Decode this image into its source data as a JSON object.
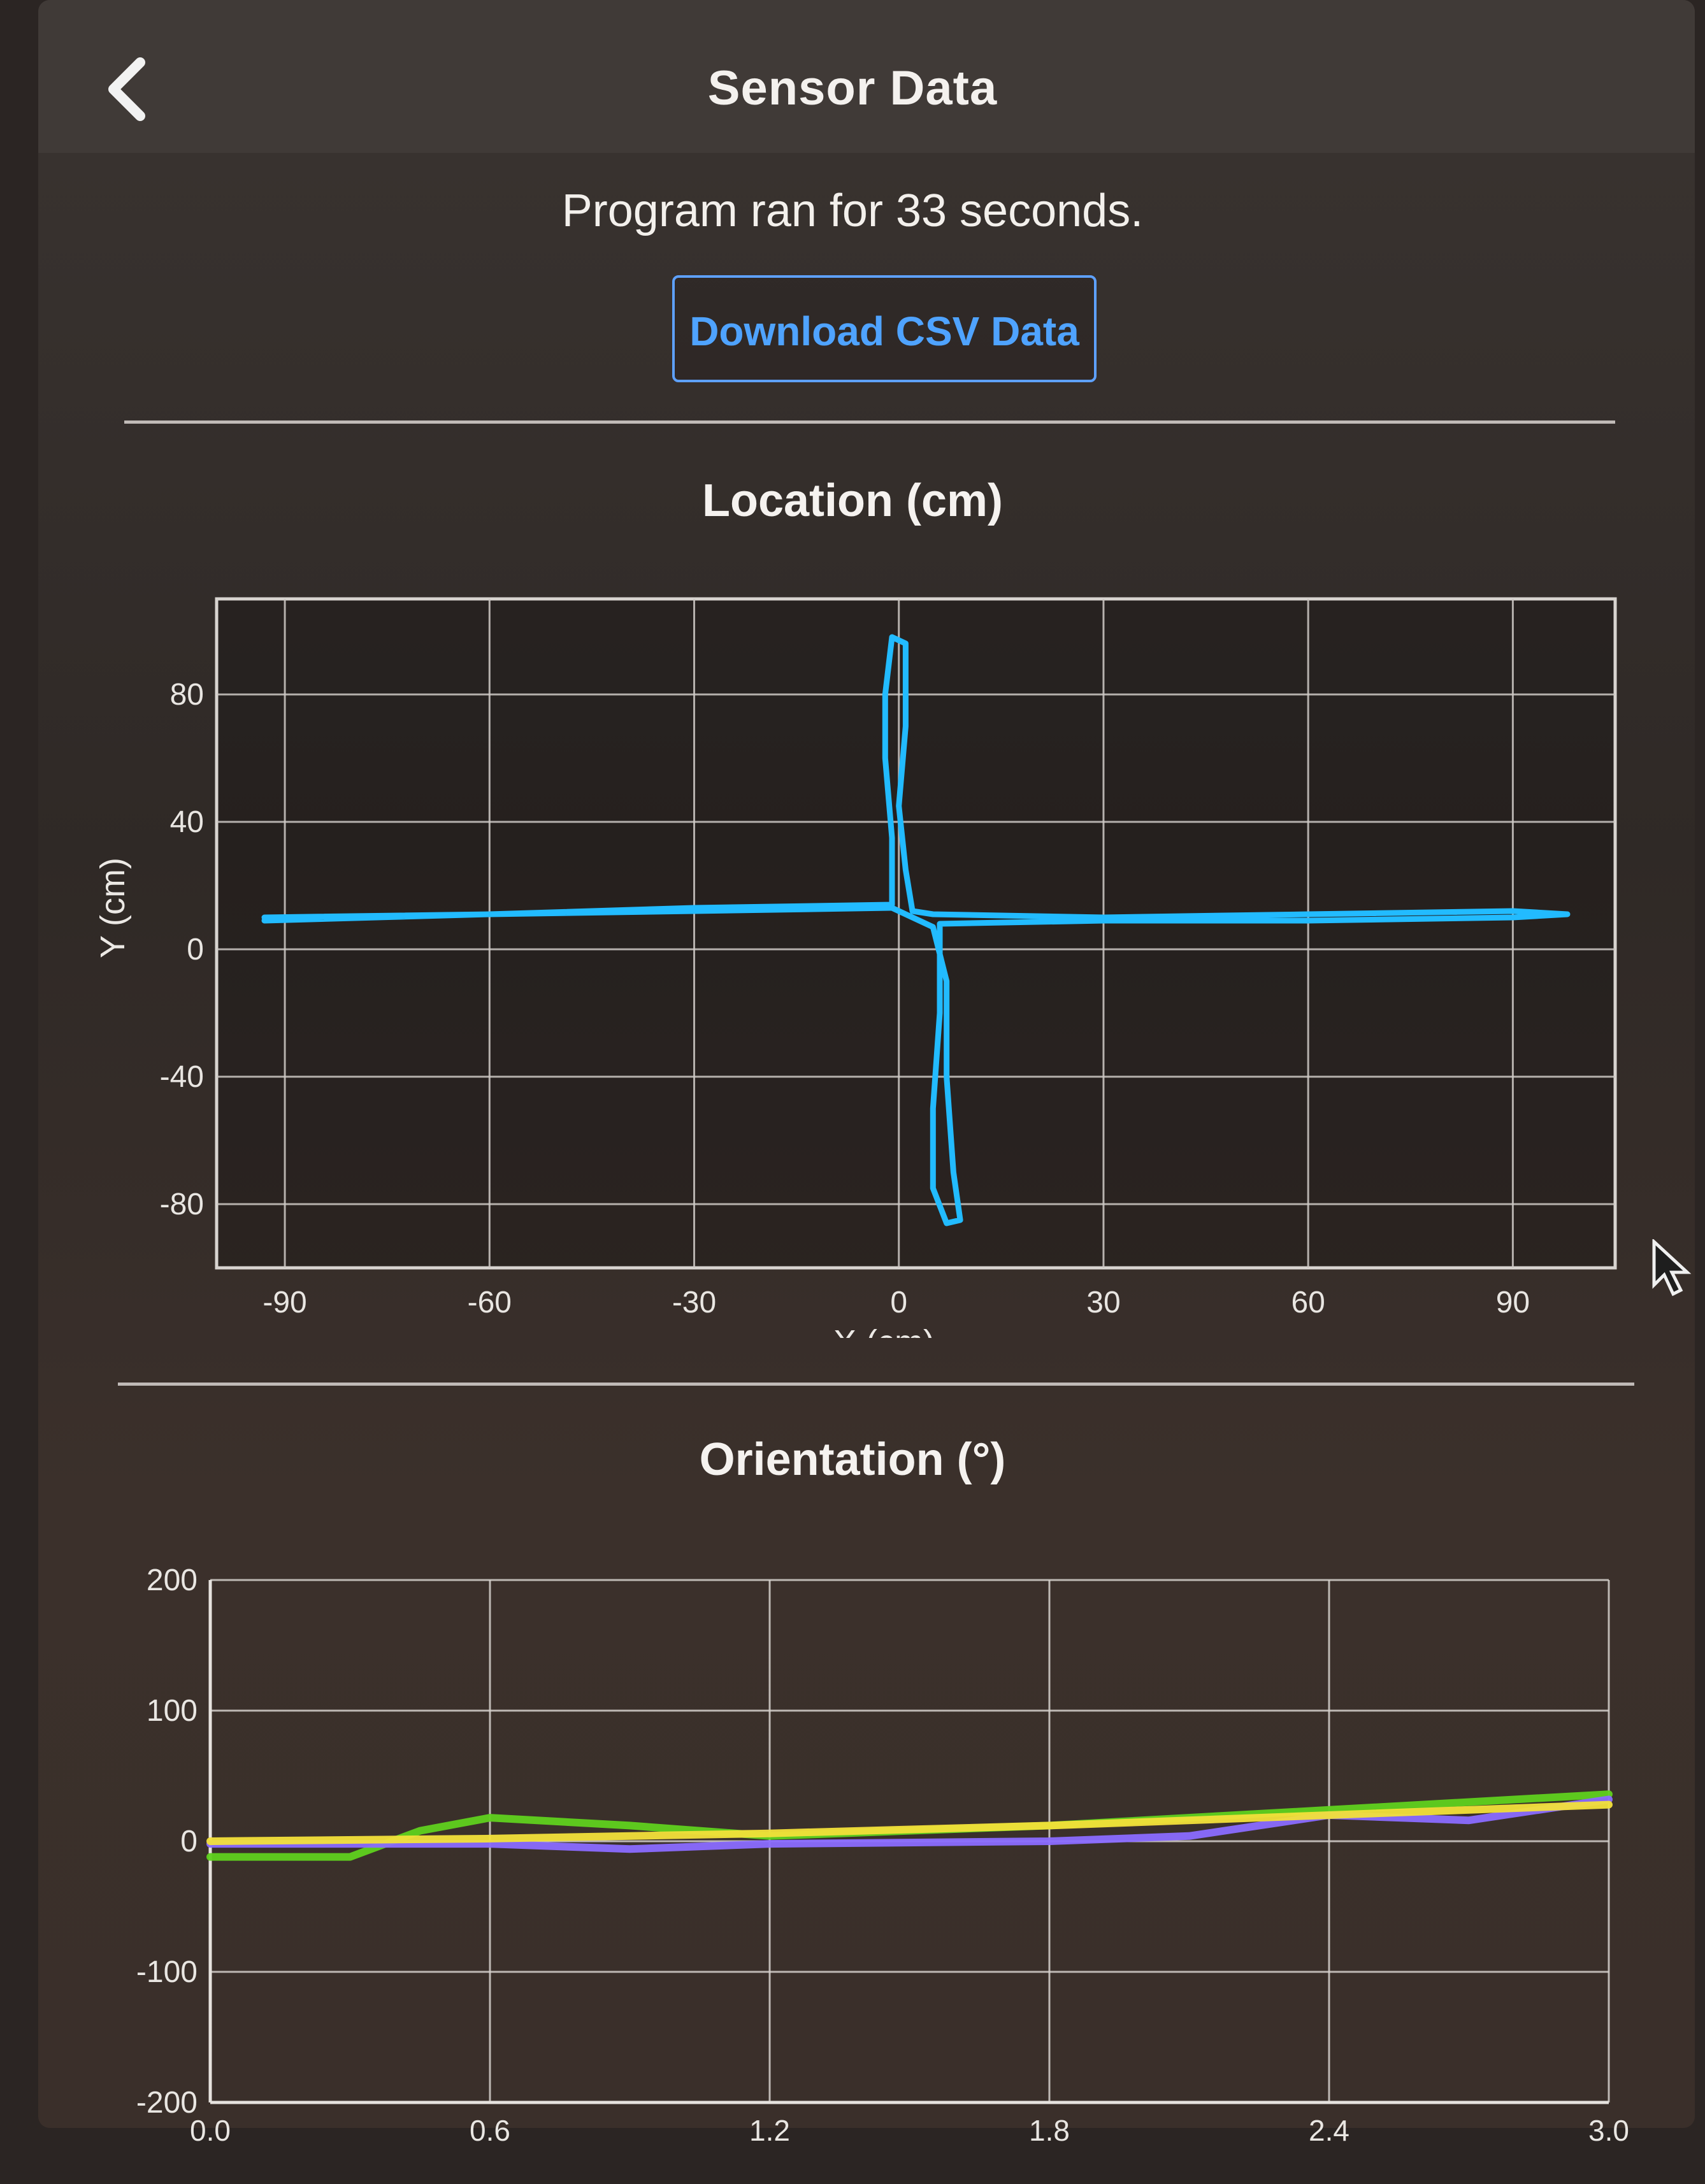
{
  "header": {
    "title": "Sensor Data",
    "back_icon": "chevron-left-icon"
  },
  "summary": {
    "runtime_text": "Program ran for 33 seconds.",
    "download_label": "Download CSV Data"
  },
  "location_chart": {
    "title": "Location (cm)",
    "chart_data": {
      "type": "line",
      "title": "Location (cm)",
      "xlabel": "X (cm)",
      "ylabel": "Y (cm)",
      "xlim": [
        -100,
        105
      ],
      "ylim": [
        -100,
        110
      ],
      "x_ticks": [
        -90,
        -60,
        -30,
        0,
        30,
        60,
        90
      ],
      "y_ticks": [
        80,
        40,
        0,
        -40,
        -80
      ],
      "grid": true,
      "series": [
        {
          "color": "#22bbff",
          "points": [
            [
              -93,
              9
            ],
            [
              -60,
              11
            ],
            [
              -30,
              13
            ],
            [
              -1,
              14
            ],
            [
              -1,
              35
            ],
            [
              -2,
              60
            ],
            [
              -2,
              80
            ],
            [
              -1,
              98
            ],
            [
              1,
              96
            ],
            [
              1,
              70
            ],
            [
              0,
              45
            ],
            [
              1,
              25
            ],
            [
              2,
              12
            ],
            [
              5,
              11
            ],
            [
              30,
              10
            ],
            [
              60,
              11
            ],
            [
              90,
              12
            ],
            [
              98,
              11
            ],
            [
              90,
              10
            ],
            [
              60,
              9
            ],
            [
              30,
              9
            ],
            [
              6,
              8
            ],
            [
              6,
              -20
            ],
            [
              5,
              -50
            ],
            [
              5,
              -75
            ],
            [
              7,
              -86
            ],
            [
              9,
              -85
            ],
            [
              8,
              -70
            ],
            [
              7,
              -40
            ],
            [
              7,
              -10
            ],
            [
              5,
              7
            ],
            [
              -1,
              13
            ],
            [
              -30,
              12
            ],
            [
              -60,
              11
            ],
            [
              -93,
              10
            ]
          ]
        }
      ]
    }
  },
  "orientation_chart": {
    "title": "Orientation (°)",
    "chart_data": {
      "type": "line",
      "title": "Orientation (°)",
      "xlim": [
        0,
        3
      ],
      "ylim": [
        -200,
        200
      ],
      "x_ticks": [
        "0.0",
        "0.6",
        "1.2",
        "1.8",
        "2.4",
        "3.0"
      ],
      "y_ticks": [
        200,
        100,
        0,
        -100,
        -200
      ],
      "grid": true,
      "series": [
        {
          "color": "#5fd11e",
          "points": [
            [
              0,
              -12
            ],
            [
              0.3,
              -12
            ],
            [
              0.45,
              8
            ],
            [
              0.6,
              18
            ],
            [
              0.9,
              12
            ],
            [
              1.2,
              4
            ],
            [
              1.8,
              12
            ],
            [
              2.4,
              24
            ],
            [
              3.0,
              36
            ]
          ]
        },
        {
          "color": "#8a6cff",
          "points": [
            [
              0,
              -2
            ],
            [
              0.6,
              -2
            ],
            [
              0.9,
              -6
            ],
            [
              1.2,
              -2
            ],
            [
              1.8,
              0
            ],
            [
              2.1,
              4
            ],
            [
              2.4,
              20
            ],
            [
              2.7,
              16
            ],
            [
              3.0,
              32
            ]
          ]
        },
        {
          "color": "#f2e03a",
          "points": [
            [
              0,
              0
            ],
            [
              0.6,
              2
            ],
            [
              1.2,
              6
            ],
            [
              1.8,
              12
            ],
            [
              2.4,
              20
            ],
            [
              3.0,
              28
            ]
          ]
        }
      ]
    }
  }
}
